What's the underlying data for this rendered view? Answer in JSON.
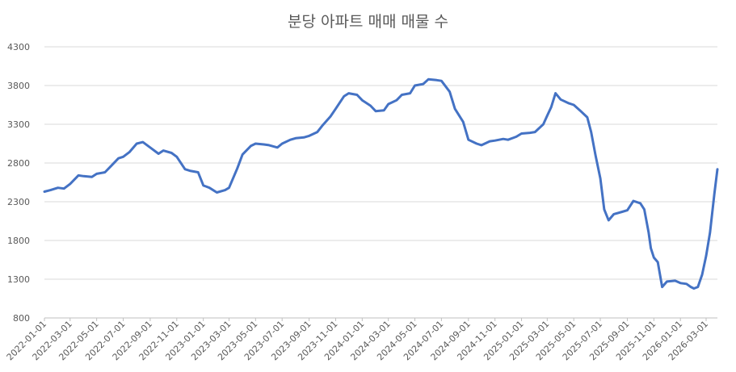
{
  "chart_data": {
    "type": "line",
    "title": "분당 아파트 매매 매물 수",
    "xlabel": "",
    "ylabel": "",
    "ylim": [
      800,
      4300
    ],
    "yticks": [
      800,
      1300,
      1800,
      2300,
      2800,
      3300,
      3800,
      4300
    ],
    "grid": true,
    "legend": "none",
    "line_color": "#4472C4",
    "xlim": [
      "2022-01-01",
      "2026-03-27"
    ],
    "xticks": [
      "2022-01-01",
      "2022-03-01",
      "2022-05-01",
      "2022-07-01",
      "2022-09-01",
      "2022-11-01",
      "2023-01-01",
      "2023-03-01",
      "2023-05-01",
      "2023-07-01",
      "2023-09-01",
      "2023-11-01",
      "2024-01-01",
      "2024-03-01",
      "2024-05-01",
      "2024-07-01",
      "2024-09-01",
      "2024-11-01",
      "2025-01-01",
      "2025-03-01",
      "2025-05-01",
      "2025-07-01",
      "2025-09-01",
      "2025-11-01",
      "2026-01-01",
      "2026-03-01"
    ],
    "series": [
      {
        "x": [
          "2022-01-01",
          "2022-01-15",
          "2022-02-01",
          "2022-02-15",
          "2022-03-01",
          "2022-03-20",
          "2022-04-01",
          "2022-04-20",
          "2022-05-01",
          "2022-05-20",
          "2022-06-01",
          "2022-06-20",
          "2022-07-01",
          "2022-07-15",
          "2022-08-01",
          "2022-08-15",
          "2022-09-01",
          "2022-09-20",
          "2022-10-01",
          "2022-10-20",
          "2022-11-01",
          "2022-11-20",
          "2022-12-01",
          "2022-12-20",
          "2023-01-01",
          "2023-01-15",
          "2023-02-01",
          "2023-02-20",
          "2023-03-01",
          "2023-03-20",
          "2023-04-01",
          "2023-04-20",
          "2023-05-01",
          "2023-05-20",
          "2023-06-01",
          "2023-06-20",
          "2023-07-01",
          "2023-07-20",
          "2023-08-01",
          "2023-08-20",
          "2023-09-01",
          "2023-09-20",
          "2023-10-01",
          "2023-10-20",
          "2023-11-01",
          "2023-11-20",
          "2023-12-01",
          "2023-12-20",
          "2024-01-01",
          "2024-01-20",
          "2024-02-01",
          "2024-02-20",
          "2024-03-01",
          "2024-03-20",
          "2024-04-01",
          "2024-04-20",
          "2024-05-01",
          "2024-05-20",
          "2024-06-01",
          "2024-06-20",
          "2024-07-01",
          "2024-07-20",
          "2024-08-01",
          "2024-08-20",
          "2024-09-01",
          "2024-09-20",
          "2024-10-01",
          "2024-10-20",
          "2024-11-01",
          "2024-11-20",
          "2024-12-01",
          "2024-12-20",
          "2025-01-01",
          "2025-01-20",
          "2025-02-01",
          "2025-02-20",
          "2025-03-01",
          "2025-03-10",
          "2025-03-20",
          "2025-04-01",
          "2025-04-20",
          "2025-05-01",
          "2025-05-15",
          "2025-06-01",
          "2025-06-10",
          "2025-06-20",
          "2025-07-01",
          "2025-07-10",
          "2025-07-20",
          "2025-08-01",
          "2025-08-20",
          "2025-09-01",
          "2025-09-15",
          "2025-10-01",
          "2025-10-10",
          "2025-10-20",
          "2025-10-25",
          "2025-11-01",
          "2025-11-10",
          "2025-11-20",
          "2025-12-01",
          "2025-12-20",
          "2026-01-01",
          "2026-01-15",
          "2026-01-25",
          "2026-02-01",
          "2026-02-10",
          "2026-02-20",
          "2026-03-01",
          "2026-03-10",
          "2026-03-20",
          "2026-03-27"
        ],
        "values": [
          2430,
          2450,
          2480,
          2470,
          2530,
          2640,
          2630,
          2620,
          2660,
          2680,
          2750,
          2860,
          2880,
          2940,
          3050,
          3070,
          3000,
          2920,
          2960,
          2930,
          2880,
          2720,
          2700,
          2680,
          2510,
          2480,
          2420,
          2450,
          2480,
          2730,
          2910,
          3020,
          3050,
          3040,
          3030,
          3000,
          3050,
          3100,
          3120,
          3130,
          3150,
          3200,
          3280,
          3400,
          3500,
          3660,
          3700,
          3680,
          3610,
          3540,
          3470,
          3480,
          3560,
          3610,
          3680,
          3700,
          3800,
          3820,
          3880,
          3870,
          3860,
          3720,
          3500,
          3330,
          3100,
          3050,
          3030,
          3080,
          3090,
          3110,
          3100,
          3140,
          3180,
          3190,
          3200,
          3300,
          3410,
          3520,
          3700,
          3620,
          3570,
          3550,
          3480,
          3390,
          3200,
          2900,
          2600,
          2200,
          2060,
          2140,
          2170,
          2190,
          2310,
          2280,
          2200,
          1900,
          1700,
          1580,
          1520,
          1200,
          1270,
          1280,
          1250,
          1240,
          1200,
          1180,
          1200,
          1360,
          1600,
          1900,
          2400,
          2720
        ]
      }
    ]
  }
}
